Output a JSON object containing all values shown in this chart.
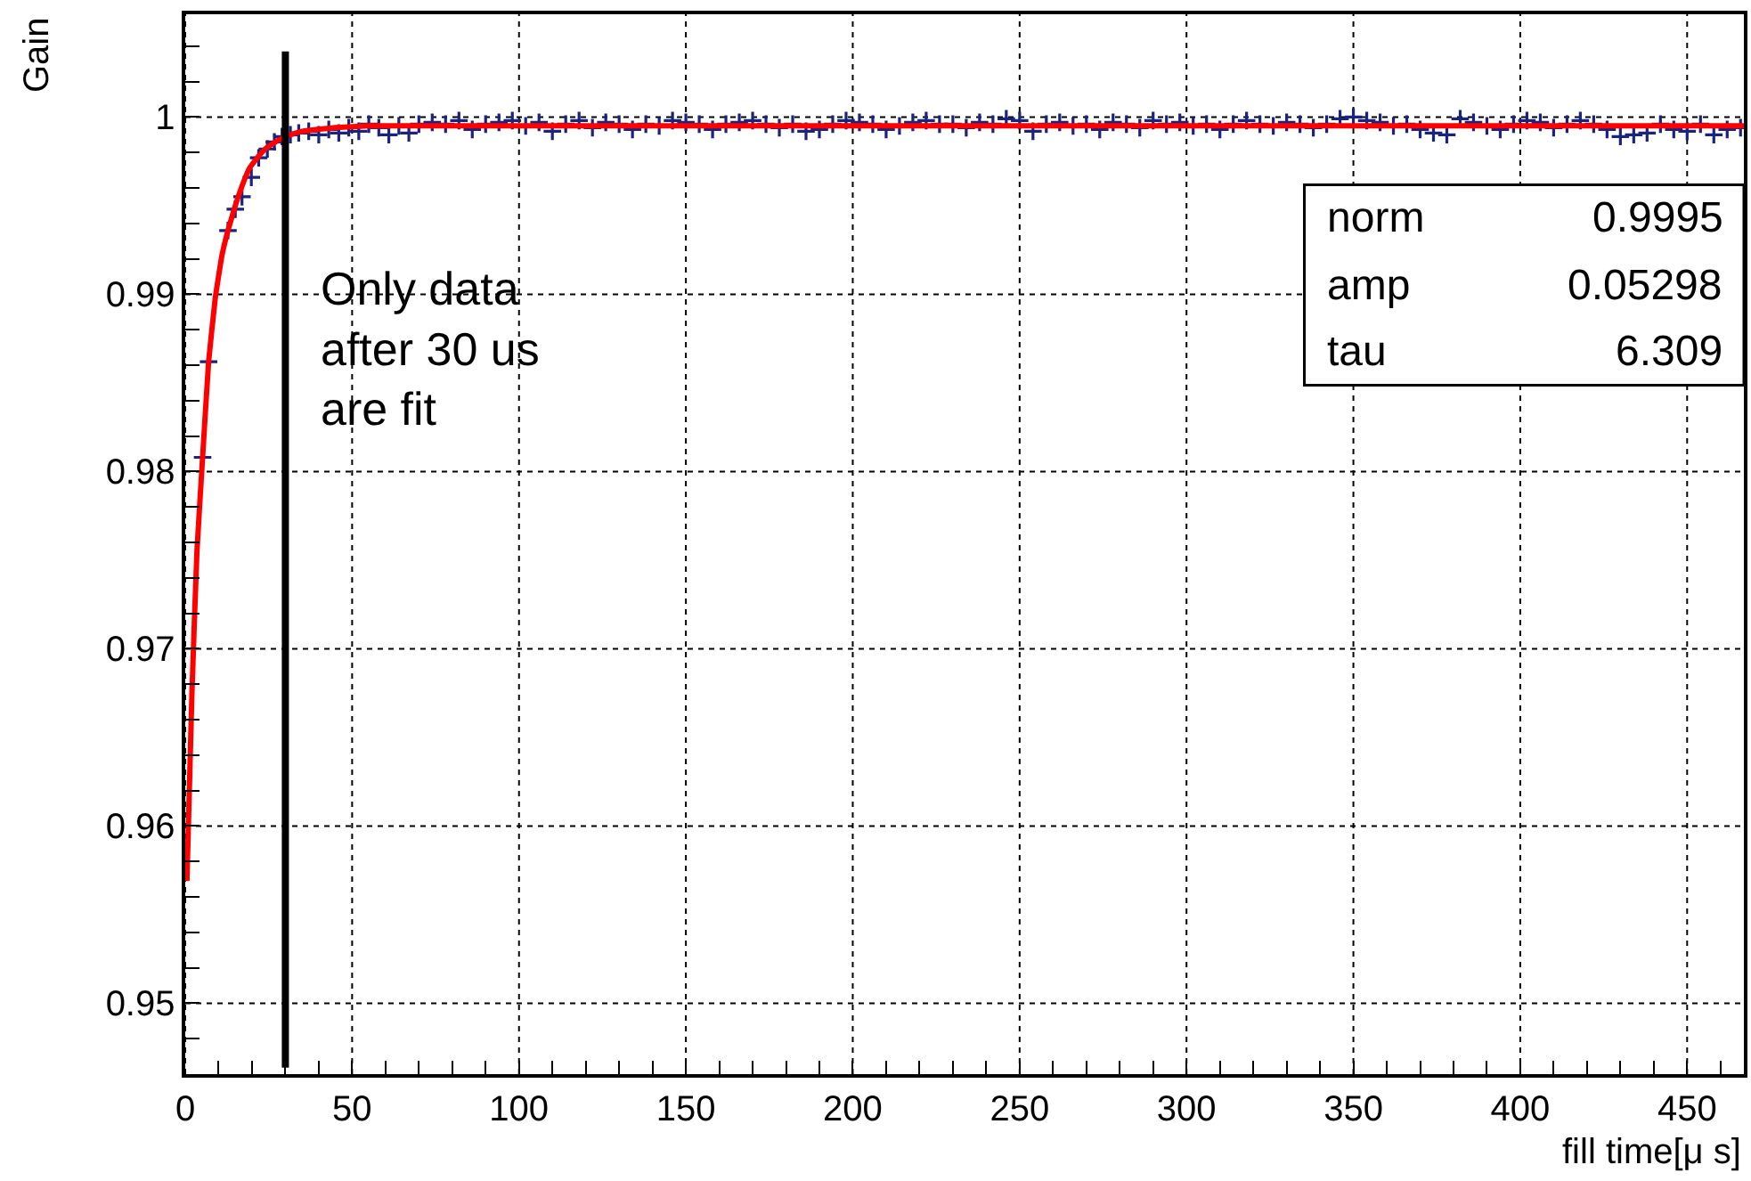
{
  "chart_data": {
    "type": "scatter",
    "xlabel": "fill time[μ s]",
    "ylabel": "Gain",
    "xlim": [
      0,
      467
    ],
    "ylim": [
      0.946,
      1.0058
    ],
    "xticks": [
      0,
      {
        "value": 10,
        "label": null
      },
      {
        "value": 20,
        "label": null
      },
      {
        "value": 30,
        "label": null
      },
      {
        "value": 40,
        "label": null
      },
      50,
      {
        "value": 60,
        "label": null
      },
      {
        "value": 70,
        "label": null
      },
      {
        "value": 80,
        "label": null
      },
      {
        "value": 90,
        "label": null
      },
      100,
      {
        "value": 110,
        "label": null
      },
      {
        "value": 120,
        "label": null
      },
      {
        "value": 130,
        "label": null
      },
      {
        "value": 140,
        "label": null
      },
      150,
      {
        "value": 160,
        "label": null
      },
      {
        "value": 170,
        "label": null
      },
      {
        "value": 180,
        "label": null
      },
      {
        "value": 190,
        "label": null
      },
      200,
      {
        "value": 210,
        "label": null
      },
      {
        "value": 220,
        "label": null
      },
      {
        "value": 230,
        "label": null
      },
      {
        "value": 240,
        "label": null
      },
      250,
      {
        "value": 260,
        "label": null
      },
      {
        "value": 270,
        "label": null
      },
      {
        "value": 280,
        "label": null
      },
      {
        "value": 290,
        "label": null
      },
      300,
      {
        "value": 310,
        "label": null
      },
      {
        "value": 320,
        "label": null
      },
      {
        "value": 330,
        "label": null
      },
      {
        "value": 340,
        "label": null
      },
      350,
      {
        "value": 360,
        "label": null
      },
      {
        "value": 370,
        "label": null
      },
      {
        "value": 380,
        "label": null
      },
      {
        "value": 390,
        "label": null
      },
      400,
      {
        "value": 410,
        "label": null
      },
      {
        "value": 420,
        "label": null
      },
      {
        "value": 430,
        "label": null
      },
      {
        "value": 440,
        "label": null
      },
      450,
      {
        "value": 460,
        "label": null
      }
    ],
    "yticks": [
      {
        "value": 0.946,
        "label": null
      },
      {
        "value": 0.948,
        "label": null
      },
      0.95,
      {
        "value": 0.952,
        "label": null
      },
      {
        "value": 0.954,
        "label": null
      },
      {
        "value": 0.956,
        "label": null
      },
      {
        "value": 0.958,
        "label": null
      },
      0.96,
      {
        "value": 0.962,
        "label": null
      },
      {
        "value": 0.964,
        "label": null
      },
      {
        "value": 0.966,
        "label": null
      },
      {
        "value": 0.968,
        "label": null
      },
      0.97,
      {
        "value": 0.972,
        "label": null
      },
      {
        "value": 0.974,
        "label": null
      },
      {
        "value": 0.976,
        "label": null
      },
      {
        "value": 0.978,
        "label": null
      },
      0.98,
      {
        "value": 0.982,
        "label": null
      },
      {
        "value": 0.984,
        "label": null
      },
      {
        "value": 0.986,
        "label": null
      },
      {
        "value": 0.988,
        "label": null
      },
      0.99,
      {
        "value": 0.992,
        "label": null
      },
      {
        "value": 0.994,
        "label": null
      },
      {
        "value": 0.996,
        "label": null
      },
      {
        "value": 0.998,
        "label": null
      },
      1,
      {
        "value": 1.002,
        "label": null
      },
      {
        "value": 1.004,
        "label": null
      }
    ],
    "grid": true,
    "marker": "cross",
    "ref_lines": [
      {
        "axis": "x",
        "value": 30,
        "color": "#000000"
      }
    ],
    "annotations": [
      "Only data\nafter 30 us\nare fit",
      "norm",
      "0.9995",
      "amp",
      "0.05298",
      "tau",
      "6.309"
    ],
    "series": [
      {
        "color": "#1a237e",
        "x": [
          5.2,
          7,
          12.8,
          15,
          17,
          19.8,
          22,
          24.6,
          26.7,
          29,
          31.5,
          34,
          37,
          40,
          43,
          46,
          49,
          52,
          55,
          58,
          61,
          64,
          67,
          70,
          74,
          78,
          82,
          86,
          90,
          94,
          98,
          102,
          106,
          110,
          114,
          118,
          122,
          126,
          130,
          134,
          138,
          142,
          146,
          150,
          154,
          158,
          162,
          166,
          170,
          174,
          178,
          182,
          186,
          190,
          194,
          198,
          202,
          206,
          210,
          214,
          218,
          222,
          226,
          230,
          234,
          238,
          242,
          246,
          250,
          254,
          258,
          262,
          266,
          270,
          274,
          278,
          282,
          286,
          290,
          294,
          298,
          302,
          306,
          310,
          314,
          318,
          322,
          326,
          330,
          334,
          338,
          342,
          346,
          350,
          354,
          358,
          362,
          366,
          370,
          374,
          378,
          382,
          386,
          390,
          394,
          398,
          402,
          406,
          410,
          414,
          418,
          422,
          426,
          430,
          434,
          438,
          442,
          446,
          450,
          454,
          458,
          462,
          466
        ],
        "values": [
          0.9808,
          0.9862,
          0.9936,
          0.9948,
          0.9955,
          0.9966,
          0.9977,
          0.9982,
          0.9986,
          0.9989,
          0.999,
          0.9991,
          0.9992,
          0.999,
          0.9993,
          0.9991,
          0.9994,
          0.9992,
          0.9996,
          0.9994,
          0.999,
          0.9995,
          0.9991,
          0.9996,
          0.9997,
          0.9996,
          0.9998,
          0.9993,
          0.9996,
          0.9997,
          0.9998,
          0.9995,
          0.9997,
          0.9992,
          0.9996,
          0.9998,
          0.9994,
          0.9997,
          0.9996,
          0.9993,
          0.9996,
          0.9995,
          0.9998,
          0.9997,
          0.9996,
          0.9993,
          0.9996,
          0.9997,
          0.9998,
          0.9996,
          0.9994,
          0.9996,
          0.9992,
          0.9993,
          0.9996,
          0.9998,
          0.9997,
          0.9996,
          0.9993,
          0.9995,
          0.9997,
          0.9998,
          0.9996,
          0.9996,
          0.9994,
          0.9997,
          0.9996,
          0.9999,
          0.9998,
          0.9992,
          0.9996,
          0.9997,
          0.9995,
          0.9996,
          0.9993,
          0.9997,
          0.9996,
          0.9994,
          0.9998,
          0.9996,
          0.9997,
          0.9995,
          0.9996,
          0.9993,
          0.9996,
          0.9998,
          0.9996,
          0.9995,
          0.9997,
          0.9996,
          0.9994,
          0.9996,
          0.9999,
          1.0,
          0.9998,
          0.9997,
          0.9995,
          0.9996,
          0.9993,
          0.9991,
          0.999,
          0.9999,
          0.9997,
          0.9995,
          0.9993,
          0.9996,
          0.9998,
          0.9997,
          0.9994,
          0.9996,
          0.9998,
          0.9996,
          0.9993,
          0.9989,
          0.999,
          0.9991,
          0.9996,
          0.9993,
          0.9992,
          0.9996,
          0.999,
          0.9993,
          0.9994
        ]
      },
      {
        "type": "line",
        "color": "#ff0000",
        "marker": "none",
        "x": [
          0.5,
          2,
          3.5,
          5.2,
          7,
          9,
          11,
          12.8,
          15,
          17,
          19.2,
          22,
          24.6,
          28,
          31.5,
          35,
          39.5,
          45,
          55,
          70,
          100,
          200,
          300,
          400,
          467
        ],
        "values": [
          0.9569,
          0.9675,
          0.9755,
          0.9808,
          0.9862,
          0.9898,
          0.9922,
          0.9936,
          0.995,
          0.9961,
          0.9971,
          0.9978,
          0.9983,
          0.9987,
          0.999,
          0.9992,
          0.9993,
          0.9994,
          0.9995,
          0.9995,
          0.9995,
          0.9995,
          0.9995,
          0.9995,
          0.9995
        ]
      }
    ]
  }
}
